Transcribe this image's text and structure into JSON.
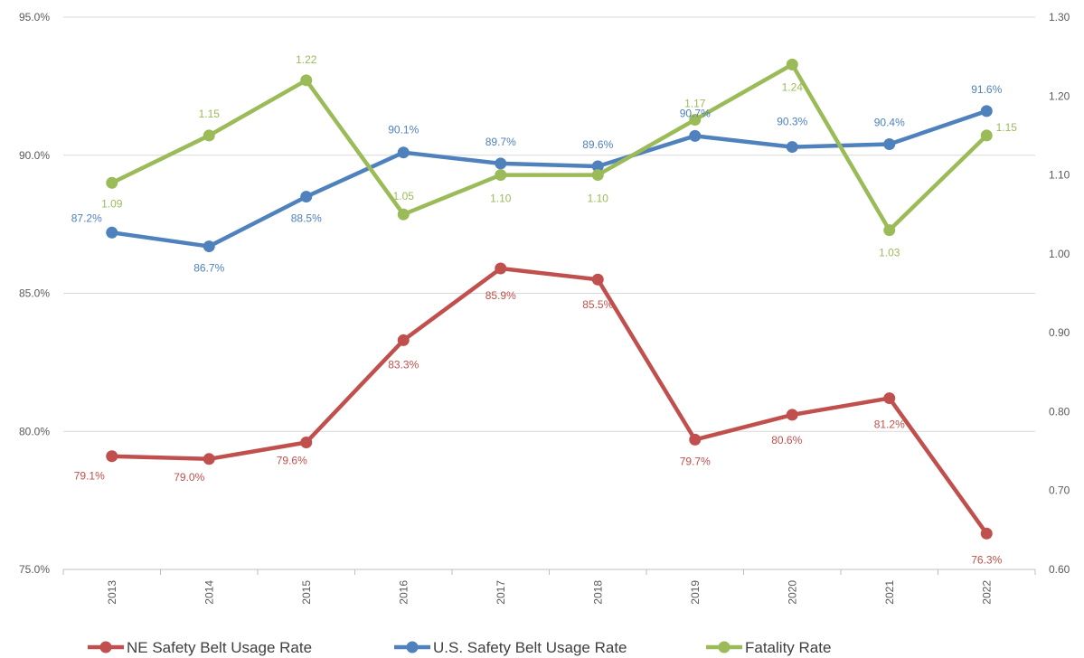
{
  "chart_data": {
    "type": "line",
    "title": "",
    "categories": [
      "2013",
      "2014",
      "2015",
      "2016",
      "2017",
      "2018",
      "2019",
      "2020",
      "2021",
      "2022"
    ],
    "y_left": {
      "min": 75,
      "max": 95,
      "step": 5,
      "tick_labels": [
        "75.0%",
        "80.0%",
        "85.0%",
        "90.0%",
        "95.0%"
      ]
    },
    "y_right": {
      "min": 0.6,
      "max": 1.3,
      "step": 0.1,
      "tick_labels": [
        "0.60",
        "0.70",
        "0.80",
        "0.90",
        "1.00",
        "1.10",
        "1.20",
        "1.30"
      ]
    },
    "grid": true,
    "legend_position": "bottom",
    "series": [
      {
        "name": "NE Safety Belt Usage Rate",
        "axis": "left",
        "color": "#c0504d",
        "values": [
          79.1,
          79.0,
          79.6,
          83.3,
          85.9,
          85.5,
          79.7,
          80.6,
          81.2,
          76.3
        ],
        "labels": [
          "79.1%",
          "79.0%",
          "79.6%",
          "83.3%",
          "85.9%",
          "85.5%",
          "79.7%",
          "80.6%",
          "81.2%",
          "76.3%"
        ]
      },
      {
        "name": "U.S. Safety Belt Usage Rate",
        "axis": "left",
        "color": "#4f81bd",
        "values": [
          87.2,
          86.7,
          88.5,
          90.1,
          89.7,
          89.6,
          90.7,
          90.3,
          90.4,
          91.6
        ],
        "labels": [
          "87.2%",
          "86.7%",
          "88.5%",
          "90.1%",
          "89.7%",
          "89.6%",
          "90.7%",
          "90.3%",
          "90.4%",
          "91.6%"
        ]
      },
      {
        "name": "Fatality Rate",
        "axis": "right",
        "color": "#9bbb59",
        "values": [
          1.09,
          1.15,
          1.22,
          1.05,
          1.1,
          1.1,
          1.17,
          1.24,
          1.03,
          1.15
        ],
        "labels": [
          "1.09",
          "1.15",
          "1.22",
          "1.05",
          "1.10",
          "1.10",
          "1.17",
          "1.24",
          "1.03",
          "1.15"
        ]
      }
    ]
  }
}
